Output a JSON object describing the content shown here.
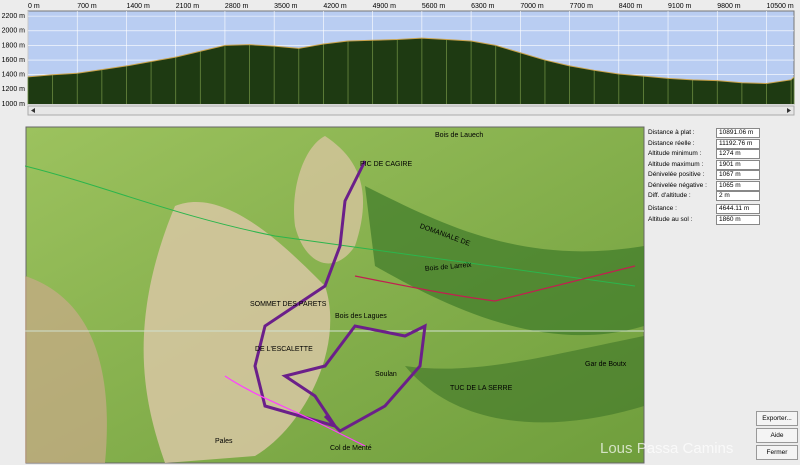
{
  "chart_data": {
    "type": "area",
    "x": [
      0,
      350,
      700,
      1050,
      1400,
      1750,
      2100,
      2450,
      2800,
      3150,
      3500,
      3850,
      4200,
      4550,
      4900,
      5250,
      5600,
      5950,
      6300,
      6650,
      7000,
      7350,
      7700,
      8050,
      8400,
      8750,
      9100,
      9450,
      9800,
      10150,
      10500,
      10850,
      10891
    ],
    "values": [
      1370,
      1400,
      1420,
      1470,
      1520,
      1580,
      1640,
      1720,
      1800,
      1810,
      1790,
      1760,
      1820,
      1860,
      1870,
      1880,
      1900,
      1880,
      1860,
      1800,
      1700,
      1600,
      1520,
      1460,
      1410,
      1380,
      1350,
      1330,
      1320,
      1290,
      1280,
      1330,
      1368
    ],
    "xlim": [
      0,
      10891
    ],
    "ylim": [
      1000,
      2270
    ],
    "xticks": [
      {
        "value": 0,
        "label": "0 m"
      },
      {
        "value": 700,
        "label": "700 m"
      },
      {
        "value": 1400,
        "label": "1400 m"
      },
      {
        "value": 2100,
        "label": "2100 m"
      },
      {
        "value": 2800,
        "label": "2800 m"
      },
      {
        "value": 3500,
        "label": "3500 m"
      },
      {
        "value": 4200,
        "label": "4200 m"
      },
      {
        "value": 4900,
        "label": "4900 m"
      },
      {
        "value": 5600,
        "label": "5600 m"
      },
      {
        "value": 6300,
        "label": "6300 m"
      },
      {
        "value": 7000,
        "label": "7000 m"
      },
      {
        "value": 7700,
        "label": "7700 m"
      },
      {
        "value": 8400,
        "label": "8400 m"
      },
      {
        "value": 9100,
        "label": "9100 m"
      },
      {
        "value": 9800,
        "label": "9800 m"
      },
      {
        "value": 10500,
        "label": "10500 m"
      }
    ],
    "yticks": [
      {
        "value": 1000,
        "label": "1000 m"
      },
      {
        "value": 1200,
        "label": "1200 m"
      },
      {
        "value": 1400,
        "label": "1400 m"
      },
      {
        "value": 1600,
        "label": "1600 m"
      },
      {
        "value": 1800,
        "label": "1800 m"
      },
      {
        "value": 2000,
        "label": "2000 m"
      },
      {
        "value": 2200,
        "label": "2200 m"
      }
    ],
    "grid": true,
    "color": "#1e3a12",
    "background": "#b9cdf2"
  },
  "map": {
    "labels": [
      "PIC DE CAGIRE",
      "Bois de Lauech",
      "DOMANIALE DE",
      "Bois de Larreix",
      "SOMMET DES PARETS",
      "DE L'ESCALETTE",
      "Bois des Lagues",
      "Soulan",
      "TUC DE LA SERRE",
      "Gar de Boutx",
      "Pales",
      "Col de Menté"
    ]
  },
  "stats": {
    "rows": [
      {
        "label": "Distance à plat :",
        "value": "10891.06 m"
      },
      {
        "label": "Distance réelle :",
        "value": "11192.76 m"
      },
      {
        "label": "Altitude minimum :",
        "value": "1274 m"
      },
      {
        "label": "Altitude maximum :",
        "value": "1901 m"
      },
      {
        "label": "Dénivelée positive :",
        "value": "1067 m"
      },
      {
        "label": "Dénivelée négative :",
        "value": "1065 m"
      },
      {
        "label": "Diff. d'altitude :",
        "value": "2 m"
      }
    ],
    "cursor": [
      {
        "label": "Distance :",
        "value": "4644.11 m"
      },
      {
        "label": "Altitude au sol :",
        "value": "1860 m"
      }
    ]
  },
  "buttons": [
    "Exporter...",
    "Aide",
    "Fermer"
  ],
  "watermark": "Lous Passa Camins"
}
